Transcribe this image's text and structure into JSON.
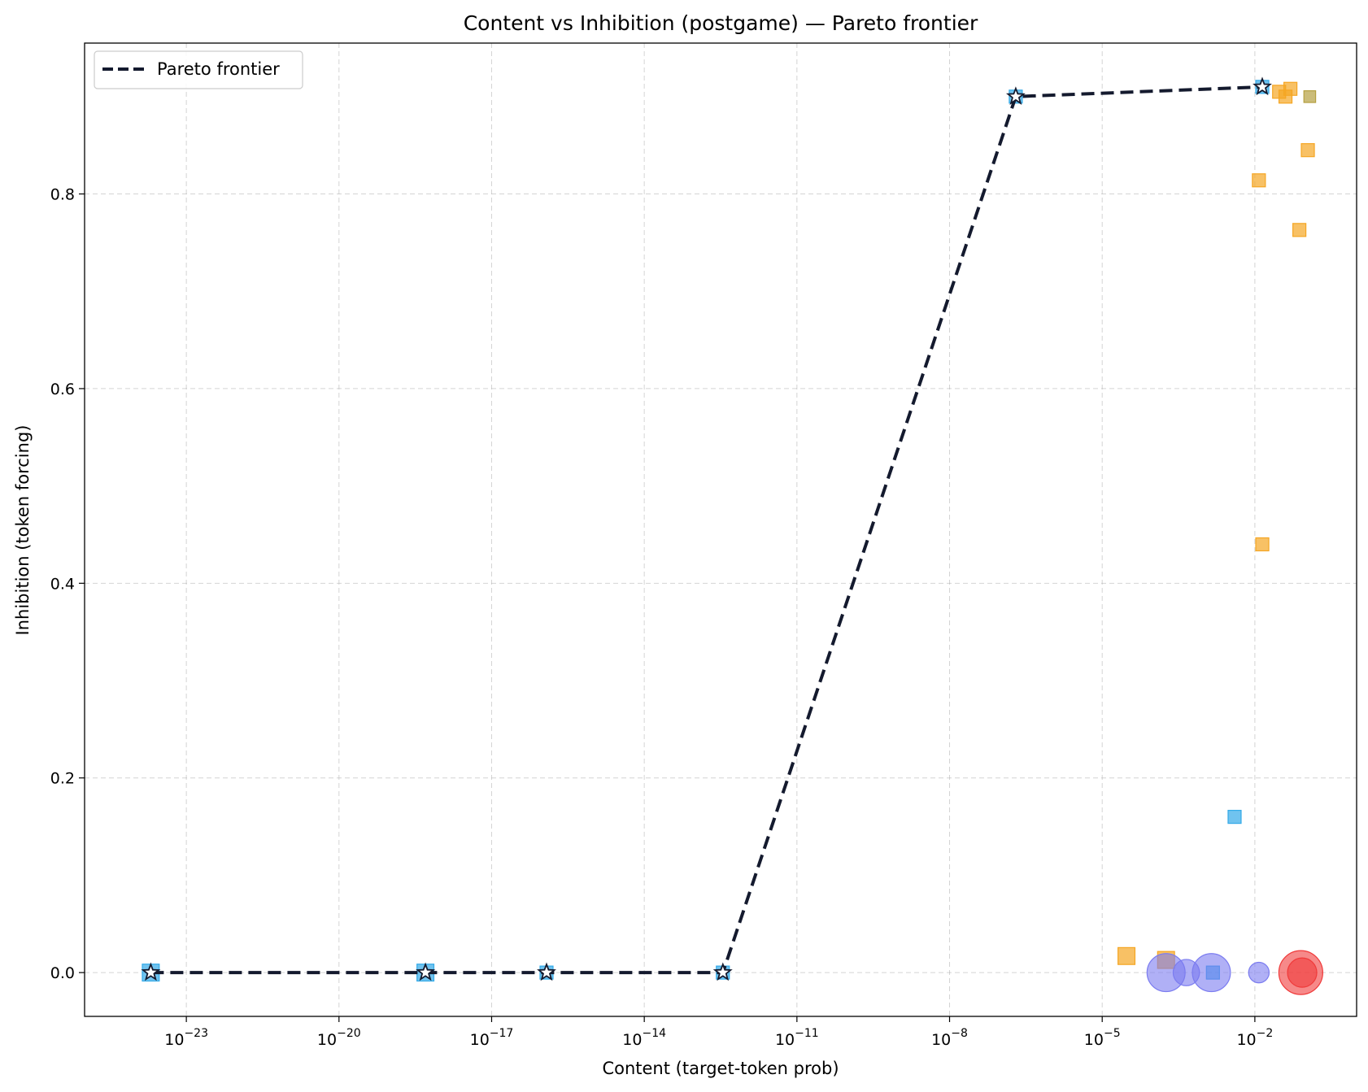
{
  "chart_data": {
    "type": "scatter",
    "title": "Content vs Inhibition (postgame) — Pareto frontier",
    "xlabel": "Content (target-token prob)",
    "ylabel": "Inhibition (token forcing)",
    "xscale": "log",
    "xlim": [
      1e-25,
      1.0
    ],
    "ylim": [
      -0.045,
      0.955
    ],
    "xticks": [
      {
        "value": 1e-23,
        "base": "10",
        "exp": "−23"
      },
      {
        "value": 1e-20,
        "base": "10",
        "exp": "−20"
      },
      {
        "value": 1e-17,
        "base": "10",
        "exp": "−17"
      },
      {
        "value": 1e-14,
        "base": "10",
        "exp": "−14"
      },
      {
        "value": 1e-11,
        "base": "10",
        "exp": "−11"
      },
      {
        "value": 1e-08,
        "base": "10",
        "exp": "−8"
      },
      {
        "value": 1e-05,
        "base": "10",
        "exp": "−5"
      },
      {
        "value": 0.01,
        "base": "10",
        "exp": "−2"
      }
    ],
    "yticks": [
      {
        "value": 0.0,
        "label": "0.0"
      },
      {
        "value": 0.2,
        "label": "0.2"
      },
      {
        "value": 0.4,
        "label": "0.4"
      },
      {
        "value": 0.6,
        "label": "0.6"
      },
      {
        "value": 0.8,
        "label": "0.8"
      }
    ],
    "grid": true,
    "legend": {
      "placement": "top-left",
      "entries": [
        {
          "name": "Pareto frontier",
          "style": "dashed",
          "color": "#141a2e"
        }
      ]
    },
    "frontier": {
      "name": "Pareto frontier",
      "color": "#141a2e",
      "x": [
        2e-24,
        5e-19,
        1.2e-16,
        3.5e-13,
        2e-07,
        0.014
      ],
      "y": [
        0.0,
        0.0,
        0.0,
        0.0,
        0.9,
        0.91
      ]
    },
    "groups": [
      {
        "marker": "square",
        "color": "#33aae8",
        "points": [
          {
            "x": 2e-24,
            "y": 0.0,
            "size": 1.3
          },
          {
            "x": 5e-19,
            "y": 0.0,
            "size": 1.3
          },
          {
            "x": 1.2e-16,
            "y": 0.0,
            "size": 1.0
          },
          {
            "x": 3.5e-13,
            "y": 0.0,
            "size": 1.0
          },
          {
            "x": 2e-07,
            "y": 0.9,
            "size": 1.0
          },
          {
            "x": 0.014,
            "y": 0.91,
            "size": 1.0
          },
          {
            "x": 0.004,
            "y": 0.16,
            "size": 1.0
          },
          {
            "x": 0.0015,
            "y": 0.0,
            "size": 1.0
          }
        ]
      },
      {
        "marker": "square",
        "color": "#f5a623",
        "points": [
          {
            "x": 3e-05,
            "y": 0.017,
            "size": 1.3
          },
          {
            "x": 0.00018,
            "y": 0.013,
            "size": 1.3
          },
          {
            "x": 0.012,
            "y": 0.814,
            "size": 1.0
          },
          {
            "x": 0.014,
            "y": 0.44,
            "size": 1.0
          },
          {
            "x": 0.03,
            "y": 0.905,
            "size": 1.0
          },
          {
            "x": 0.04,
            "y": 0.9,
            "size": 1.0
          },
          {
            "x": 0.05,
            "y": 0.908,
            "size": 1.0
          },
          {
            "x": 0.075,
            "y": 0.763,
            "size": 1.0
          },
          {
            "x": 0.11,
            "y": 0.845,
            "size": 1.0
          }
        ]
      },
      {
        "marker": "square",
        "color": "#b5a040",
        "points": [
          {
            "x": 0.12,
            "y": 0.9,
            "size": 0.9
          }
        ]
      },
      {
        "marker": "circle",
        "color": "#7b7cf0",
        "points": [
          {
            "x": 0.00018,
            "y": 0.0,
            "size": 2.6
          },
          {
            "x": 0.00045,
            "y": 0.0,
            "size": 1.8
          },
          {
            "x": 0.0014,
            "y": 0.0,
            "size": 2.6
          },
          {
            "x": 0.012,
            "y": 0.0,
            "size": 1.4
          }
        ]
      },
      {
        "marker": "circle",
        "color": "#f03a3a",
        "points": [
          {
            "x": 0.08,
            "y": 0.0,
            "size": 3.0
          },
          {
            "x": 0.085,
            "y": 0.0,
            "size": 2.0
          }
        ]
      }
    ]
  }
}
